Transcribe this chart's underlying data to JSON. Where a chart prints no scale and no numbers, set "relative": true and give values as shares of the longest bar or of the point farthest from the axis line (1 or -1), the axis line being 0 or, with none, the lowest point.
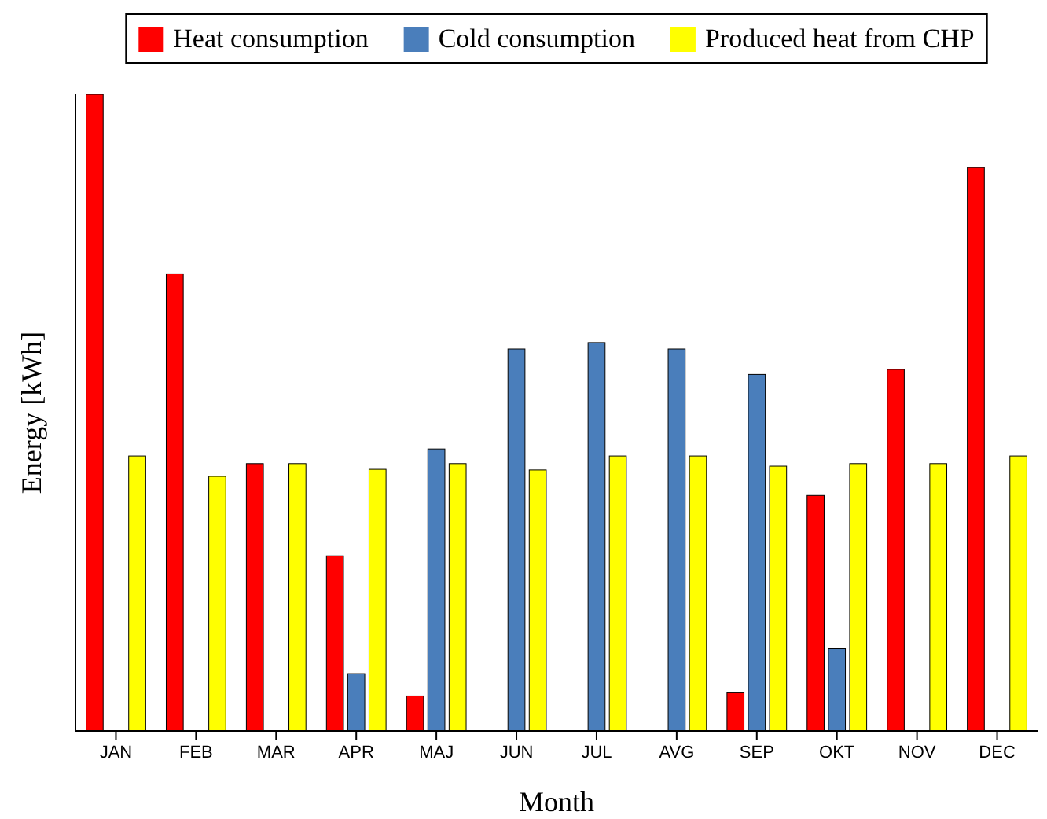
{
  "chart_data": {
    "type": "bar",
    "relative": true,
    "xlabel": "Month",
    "ylabel": "Energy [kWh]",
    "legend": "top",
    "categories": [
      "JAN",
      "FEB",
      "MAR",
      "APR",
      "MAJ",
      "JUN",
      "JUL",
      "AVG",
      "SEP",
      "OKT",
      "NOV",
      "DEC"
    ],
    "series": [
      {
        "name": "Heat consumption",
        "color": "#ff0000",
        "values": [
          1,
          0.718,
          0.42,
          0.275,
          0.055,
          null,
          null,
          null,
          0.06,
          0.37,
          0.568,
          0.885
        ]
      },
      {
        "name": "Cold consumption",
        "color": "#4a7ebb",
        "values": [
          null,
          null,
          null,
          0.09,
          0.443,
          0.6,
          0.61,
          0.6,
          0.56,
          0.129,
          null,
          null
        ]
      },
      {
        "name": "Produced heat from CHP",
        "color": "#ffff00",
        "values": [
          0.432,
          0.4,
          0.42,
          0.411,
          0.42,
          0.41,
          0.432,
          0.432,
          0.416,
          0.42,
          0.42,
          0.432
        ]
      }
    ]
  }
}
